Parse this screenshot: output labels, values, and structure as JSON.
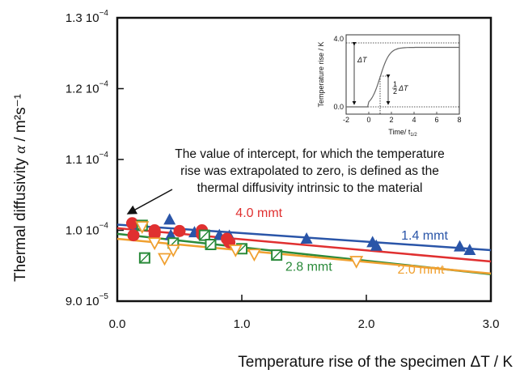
{
  "chart_data": {
    "type": "scatter",
    "xlabel": "Temperature rise of the specimen   ΔT / K",
    "ylabel": "Thermal diffusivity",
    "ylabel_symbol": "α",
    "ylabel_unit": " / m²s⁻¹",
    "xlim": [
      0,
      3.0
    ],
    "ylim": [
      9.0,
      13.0
    ],
    "x_ticks": [
      {
        "value": 0.0,
        "label": "0.0"
      },
      {
        "value": 1.0,
        "label": "1.0"
      },
      {
        "value": 2.0,
        "label": "2.0"
      },
      {
        "value": 3.0,
        "label": "3.0"
      }
    ],
    "y_ticks": [
      {
        "value": 9.0,
        "mant": "9.0 10",
        "exp": "−5"
      },
      {
        "value": 10.0,
        "mant": "1.0 10",
        "exp": "−4"
      },
      {
        "value": 11.0,
        "mant": "1.1 10",
        "exp": "−4"
      },
      {
        "value": 12.0,
        "mant": "1.2 10",
        "exp": "−4"
      },
      {
        "value": 13.0,
        "mant": "1.3 10",
        "exp": "−4"
      }
    ],
    "annotation": [
      "The value of intercept, for which the temperature",
      "rise was extrapolated to zero, is defined as the",
      "thermal diffusivity intrinsic to the material"
    ],
    "series": [
      {
        "name": "1.4 mmt",
        "marker": "triangle-up",
        "color": "#2a55a8",
        "fit": [
          10.08,
          9.72
        ],
        "points": [
          [
            0.15,
            10.07
          ],
          [
            0.42,
            10.15
          ],
          [
            0.43,
            9.93
          ],
          [
            0.62,
            9.97
          ],
          [
            0.82,
            9.93
          ],
          [
            0.9,
            9.92
          ],
          [
            1.52,
            9.88
          ],
          [
            2.05,
            9.83
          ],
          [
            2.08,
            9.78
          ],
          [
            2.75,
            9.77
          ],
          [
            2.83,
            9.72
          ]
        ]
      },
      {
        "name": "4.0 mmt",
        "marker": "circle",
        "color": "#e03030",
        "fit": [
          10.03,
          9.56
        ],
        "points": [
          [
            0.12,
            10.1
          ],
          [
            0.13,
            9.93
          ],
          [
            0.3,
            10.0
          ],
          [
            0.3,
            9.95
          ],
          [
            0.5,
            9.99
          ],
          [
            0.68,
            10.0
          ],
          [
            0.68,
            9.94
          ],
          [
            0.88,
            9.88
          ],
          [
            0.9,
            9.83
          ]
        ]
      },
      {
        "name": "2.8 mmt",
        "marker": "square",
        "color": "#2a8a3a",
        "fit": [
          9.95,
          9.38
        ],
        "points": [
          [
            0.2,
            10.07
          ],
          [
            0.22,
            9.61
          ],
          [
            0.45,
            9.82
          ],
          [
            0.7,
            9.93
          ],
          [
            0.75,
            9.8
          ],
          [
            1.0,
            9.74
          ],
          [
            1.28,
            9.65
          ]
        ]
      },
      {
        "name": "2.0 mmt",
        "marker": "triangle-down",
        "color": "#f0a030",
        "fit": [
          9.88,
          9.39
        ],
        "points": [
          [
            0.2,
            10.05
          ],
          [
            0.3,
            9.82
          ],
          [
            0.38,
            9.6
          ],
          [
            0.45,
            9.72
          ],
          [
            0.95,
            9.72
          ],
          [
            1.1,
            9.66
          ],
          [
            1.92,
            9.56
          ]
        ]
      }
    ],
    "series_labels": [
      {
        "series": 0,
        "at": [
          2.28,
          9.87
        ],
        "text": "1.4 mmt"
      },
      {
        "series": 1,
        "at": [
          0.95,
          10.19
        ],
        "text": "4.0 mmt"
      },
      {
        "series": 2,
        "at": [
          1.35,
          9.43
        ],
        "text": "2.8 mmt"
      },
      {
        "series": 3,
        "at": [
          2.25,
          9.39
        ],
        "text": "2.0 mmt"
      }
    ],
    "inset": {
      "ylabel": "Temperature rise / K",
      "xlabel": "Time/ t",
      "xlabel_sub": "1/2",
      "xlim": [
        -2,
        8
      ],
      "ylim": [
        0,
        4
      ],
      "x_ticks": [
        "-2",
        "0",
        "2",
        "4",
        "6",
        "8"
      ],
      "y_ticks": [
        {
          "value": 0,
          "label": "0.0"
        },
        {
          "value": 4,
          "label": "4.0"
        }
      ],
      "delta_label": "ΔT",
      "half_label_num": "1",
      "half_label_den": "2",
      "half_label_sym": "ΔT",
      "plateau": 3.5
    }
  }
}
